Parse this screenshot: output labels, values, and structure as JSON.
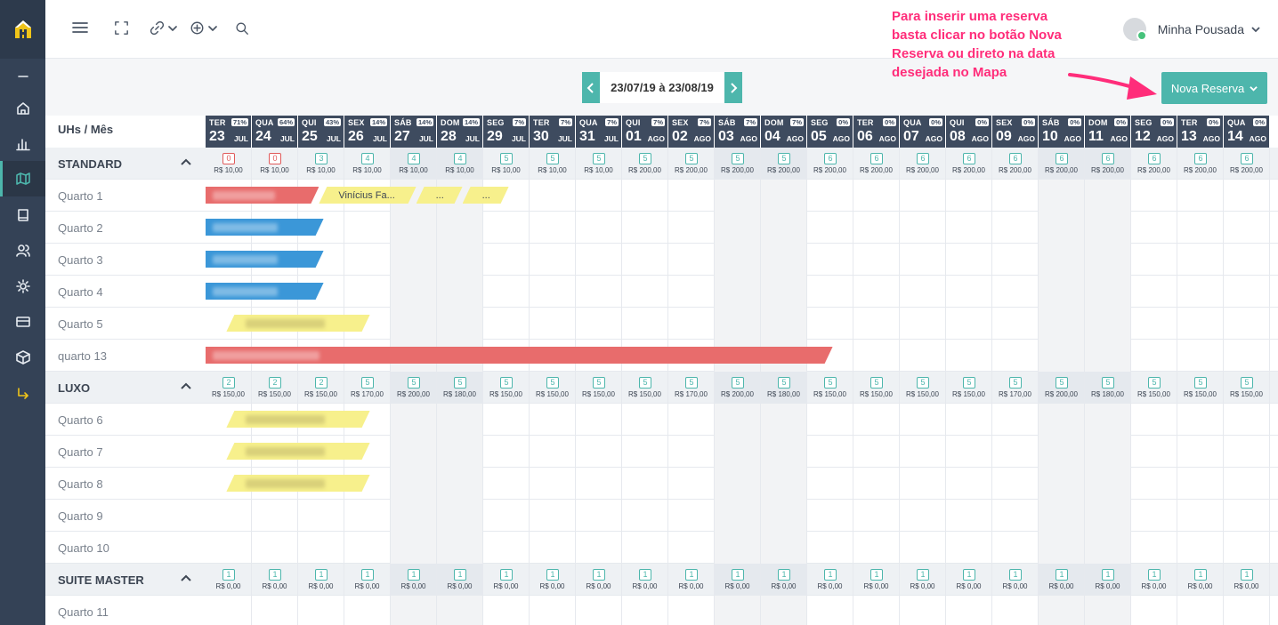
{
  "sidebar": {
    "items": [
      {
        "name": "collapse-icon"
      },
      {
        "name": "home-icon"
      },
      {
        "name": "chart-icon"
      },
      {
        "name": "map-icon"
      },
      {
        "name": "book-icon"
      },
      {
        "name": "users-icon"
      },
      {
        "name": "sun-icon"
      },
      {
        "name": "card-icon"
      },
      {
        "name": "box-icon"
      },
      {
        "name": "exit-icon"
      }
    ]
  },
  "topbar": {
    "user_name": "Minha Pousada"
  },
  "annotation": {
    "text": "Para inserir uma reserva basta clicar no botão Nova Reserva ou direto na data desejada no Mapa"
  },
  "date_nav": {
    "range": "23/07/19 à 23/08/19"
  },
  "nova_reserva_label": "Nova Reserva",
  "grid": {
    "header_label": "UHs / Mês",
    "days": [
      {
        "dow": "TER",
        "day": "23",
        "month": "JUL",
        "occ": "71%",
        "weekend": false
      },
      {
        "dow": "QUA",
        "day": "24",
        "month": "JUL",
        "occ": "64%",
        "weekend": false
      },
      {
        "dow": "QUI",
        "day": "25",
        "month": "JUL",
        "occ": "43%",
        "weekend": false
      },
      {
        "dow": "SEX",
        "day": "26",
        "month": "JUL",
        "occ": "14%",
        "weekend": false
      },
      {
        "dow": "SÁB",
        "day": "27",
        "month": "JUL",
        "occ": "14%",
        "weekend": true
      },
      {
        "dow": "DOM",
        "day": "28",
        "month": "JUL",
        "occ": "14%",
        "weekend": true
      },
      {
        "dow": "SEG",
        "day": "29",
        "month": "JUL",
        "occ": "7%",
        "weekend": false
      },
      {
        "dow": "TER",
        "day": "30",
        "month": "JUL",
        "occ": "7%",
        "weekend": false
      },
      {
        "dow": "QUA",
        "day": "31",
        "month": "JUL",
        "occ": "7%",
        "weekend": false
      },
      {
        "dow": "QUI",
        "day": "01",
        "month": "AGO",
        "occ": "7%",
        "weekend": false
      },
      {
        "dow": "SEX",
        "day": "02",
        "month": "AGO",
        "occ": "7%",
        "weekend": false
      },
      {
        "dow": "SÁB",
        "day": "03",
        "month": "AGO",
        "occ": "7%",
        "weekend": true
      },
      {
        "dow": "DOM",
        "day": "04",
        "month": "AGO",
        "occ": "7%",
        "weekend": true
      },
      {
        "dow": "SEG",
        "day": "05",
        "month": "AGO",
        "occ": "0%",
        "weekend": false
      },
      {
        "dow": "TER",
        "day": "06",
        "month": "AGO",
        "occ": "0%",
        "weekend": false
      },
      {
        "dow": "QUA",
        "day": "07",
        "month": "AGO",
        "occ": "0%",
        "weekend": false
      },
      {
        "dow": "QUI",
        "day": "08",
        "month": "AGO",
        "occ": "0%",
        "weekend": false
      },
      {
        "dow": "SEX",
        "day": "09",
        "month": "AGO",
        "occ": "0%",
        "weekend": false
      },
      {
        "dow": "SÁB",
        "day": "10",
        "month": "AGO",
        "occ": "0%",
        "weekend": true
      },
      {
        "dow": "DOM",
        "day": "11",
        "month": "AGO",
        "occ": "0%",
        "weekend": true
      },
      {
        "dow": "SEG",
        "day": "12",
        "month": "AGO",
        "occ": "0%",
        "weekend": false
      },
      {
        "dow": "TER",
        "day": "13",
        "month": "AGO",
        "occ": "0%",
        "weekend": false
      },
      {
        "dow": "QUA",
        "day": "14",
        "month": "AGO",
        "occ": "0%",
        "weekend": false
      }
    ],
    "rows": [
      {
        "type": "category",
        "label": "STANDARD",
        "avail": [
          "0",
          "0",
          "3",
          "4",
          "4",
          "4",
          "5",
          "5",
          "5",
          "5",
          "5",
          "5",
          "5",
          "6",
          "6",
          "6",
          "6",
          "6",
          "6",
          "6",
          "6",
          "6",
          "6"
        ],
        "prices": [
          "R$ 10,00",
          "R$ 10,00",
          "R$ 10,00",
          "R$ 10,00",
          "R$ 10,00",
          "R$ 10,00",
          "R$ 10,00",
          "R$ 10,00",
          "R$ 10,00",
          "R$ 200,00",
          "R$ 200,00",
          "R$ 200,00",
          "R$ 200,00",
          "R$ 200,00",
          "R$ 200,00",
          "R$ 200,00",
          "R$ 200,00",
          "R$ 200,00",
          "R$ 200,00",
          "R$ 200,00",
          "R$ 200,00",
          "R$ 200,00",
          "R$ 200,00"
        ]
      },
      {
        "type": "room",
        "label": "Quarto 1"
      },
      {
        "type": "room",
        "label": "Quarto 2"
      },
      {
        "type": "room",
        "label": "Quarto 3"
      },
      {
        "type": "room",
        "label": "Quarto 4"
      },
      {
        "type": "room",
        "label": "Quarto 5"
      },
      {
        "type": "room",
        "label": "quarto 13"
      },
      {
        "type": "category",
        "label": "LUXO",
        "avail": [
          "2",
          "2",
          "2",
          "5",
          "5",
          "5",
          "5",
          "5",
          "5",
          "5",
          "5",
          "5",
          "5",
          "5",
          "5",
          "5",
          "5",
          "5",
          "5",
          "5",
          "5",
          "5",
          "5"
        ],
        "prices": [
          "R$ 150,00",
          "R$ 150,00",
          "R$ 150,00",
          "R$ 170,00",
          "R$ 200,00",
          "R$ 180,00",
          "R$ 150,00",
          "R$ 150,00",
          "R$ 150,00",
          "R$ 150,00",
          "R$ 170,00",
          "R$ 200,00",
          "R$ 180,00",
          "R$ 150,00",
          "R$ 150,00",
          "R$ 150,00",
          "R$ 150,00",
          "R$ 170,00",
          "R$ 200,00",
          "R$ 180,00",
          "R$ 150,00",
          "R$ 150,00",
          "R$ 150,00"
        ]
      },
      {
        "type": "room",
        "label": "Quarto 6"
      },
      {
        "type": "room",
        "label": "Quarto 7"
      },
      {
        "type": "room",
        "label": "Quarto 8"
      },
      {
        "type": "room",
        "label": "Quarto 9"
      },
      {
        "type": "room",
        "label": "Quarto 10"
      },
      {
        "type": "category",
        "label": "SUITE MASTER",
        "avail": [
          "1",
          "1",
          "1",
          "1",
          "1",
          "1",
          "1",
          "1",
          "1",
          "1",
          "1",
          "1",
          "1",
          "1",
          "1",
          "1",
          "1",
          "1",
          "1",
          "1",
          "1",
          "1",
          "1"
        ],
        "prices": [
          "R$ 0,00",
          "R$ 0,00",
          "R$ 0,00",
          "R$ 0,00",
          "R$ 0,00",
          "R$ 0,00",
          "R$ 0,00",
          "R$ 0,00",
          "R$ 0,00",
          "R$ 0,00",
          "R$ 0,00",
          "R$ 0,00",
          "R$ 0,00",
          "R$ 0,00",
          "R$ 0,00",
          "R$ 0,00",
          "R$ 0,00",
          "R$ 0,00",
          "R$ 0,00",
          "R$ 0,00",
          "R$ 0,00",
          "R$ 0,00",
          "R$ 0,00"
        ]
      },
      {
        "type": "room",
        "label": "Quarto 11"
      }
    ],
    "bookings": [
      {
        "row": 1,
        "start": 0,
        "end": 2.45,
        "color": "#e86c6c",
        "label": "",
        "blurred": true
      },
      {
        "row": 1,
        "start": 2.45,
        "end": 4.55,
        "color": "#f7f08c",
        "label": "Vinícius Fa...",
        "blurred": false
      },
      {
        "row": 1,
        "start": 4.55,
        "end": 5.55,
        "color": "#f7f08c",
        "label": "...",
        "blurred": false
      },
      {
        "row": 1,
        "start": 5.55,
        "end": 6.55,
        "color": "#f7f08c",
        "label": "...",
        "blurred": false
      },
      {
        "row": 2,
        "start": 0,
        "end": 2.55,
        "color": "#3b97d8",
        "label": "",
        "blurred": true
      },
      {
        "row": 3,
        "start": 0,
        "end": 2.55,
        "color": "#3b97d8",
        "label": "",
        "blurred": true
      },
      {
        "row": 4,
        "start": 0,
        "end": 2.55,
        "color": "#3b97d8",
        "label": "",
        "blurred": true
      },
      {
        "row": 5,
        "start": 0.45,
        "end": 3.55,
        "color": "#f7f08c",
        "label": "",
        "blurred": true
      },
      {
        "row": 6,
        "start": 0,
        "end": 13.55,
        "color": "#e86c6c",
        "label": "",
        "blurred": true
      },
      {
        "row": 8,
        "start": 0.45,
        "end": 3.55,
        "color": "#f7f08c",
        "label": "",
        "blurred": true
      },
      {
        "row": 9,
        "start": 0.45,
        "end": 3.55,
        "color": "#f7f08c",
        "label": "",
        "blurred": true
      },
      {
        "row": 10,
        "start": 0.45,
        "end": 3.55,
        "color": "#f7f08c",
        "label": "",
        "blurred": true
      }
    ]
  }
}
